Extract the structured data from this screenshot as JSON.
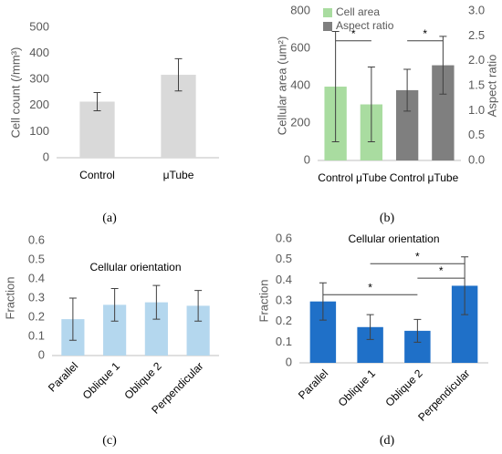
{
  "chart_data": [
    {
      "type": "bar",
      "panel_label": "(a)",
      "ylabel": "Cell count (/mm³)",
      "categories": [
        "Control",
        "μTube"
      ],
      "series": [
        {
          "name": null,
          "color": "#d9d9d9",
          "values": [
            215,
            318
          ],
          "errors": [
            35,
            62
          ]
        }
      ],
      "ylim": [
        0,
        500
      ],
      "yticks": [
        0,
        100,
        200,
        300,
        400,
        500
      ]
    },
    {
      "type": "bar",
      "panel_label": "(b)",
      "ylabel": "Cellular area (um²)",
      "y2label": "Aspect ratio",
      "categories": [
        "Control",
        "μTube",
        "Control",
        "μTube"
      ],
      "series": [
        {
          "name": "Cell area",
          "color": "#a9dca0",
          "values": [
            395,
            300,
            null,
            null
          ],
          "errors": [
            295,
            200,
            null,
            null
          ]
        },
        {
          "name": "Aspect ratio",
          "color": "#7f7f7f",
          "axis": "y2",
          "values": [
            null,
            null,
            1.41,
            1.91
          ],
          "errors": [
            null,
            null,
            0.42,
            0.58
          ]
        }
      ],
      "legend": "top-left",
      "ylim": [
        0,
        800
      ],
      "yticks": [
        0,
        200,
        400,
        600,
        800
      ],
      "y2lim": [
        0,
        3
      ],
      "y2ticks": [
        {
          "value": 0,
          "label": "0.0"
        },
        {
          "value": 0.5,
          "label": "0.5"
        },
        {
          "value": 1,
          "label": "1.0"
        },
        {
          "value": 1.5,
          "label": "1.5"
        },
        {
          "value": 2,
          "label": "2.0"
        },
        {
          "value": 2.5,
          "label": "2.5"
        },
        {
          "value": 3,
          "label": "3.0"
        }
      ],
      "annotations": [
        {
          "text": "*",
          "from": 0,
          "to": 1,
          "y": 640
        },
        {
          "text": "*",
          "from": 2,
          "to": 3,
          "y": 640
        }
      ]
    },
    {
      "type": "bar",
      "panel_label": "(c)",
      "title": "Cellular orientation",
      "ylabel": "Fraction",
      "categories": [
        "Parallel",
        "Oblique 1",
        "Oblique 2",
        "Perpendicular"
      ],
      "series": [
        {
          "name": null,
          "color": "#b4d7ee",
          "values": [
            0.19,
            0.265,
            0.278,
            0.26
          ],
          "errors": [
            0.11,
            0.085,
            0.088,
            0.08
          ]
        }
      ],
      "ylim": [
        0,
        0.6
      ],
      "yticks": [
        0,
        0.1,
        0.2,
        0.3,
        0.4,
        0.5,
        0.6
      ]
    },
    {
      "type": "bar",
      "panel_label": "(d)",
      "title": "Cellular orientation",
      "ylabel": "Fraction",
      "categories": [
        "Parallel",
        "Oblique 1",
        "Oblique 2",
        "Perpendicular"
      ],
      "series": [
        {
          "name": null,
          "color": "#1f70c8",
          "values": [
            0.297,
            0.173,
            0.155,
            0.373
          ],
          "errors": [
            0.09,
            0.06,
            0.055,
            0.14
          ]
        }
      ],
      "ylim": [
        0,
        0.6
      ],
      "yticks": [
        0,
        0.1,
        0.2,
        0.3,
        0.4,
        0.5,
        0.6
      ],
      "annotations": [
        {
          "text": "*",
          "from": 0,
          "to": 2,
          "y": 0.33
        },
        {
          "text": "*",
          "from": 1,
          "to": 3,
          "y": 0.48
        },
        {
          "text": "*",
          "from": 2,
          "to": 3,
          "y": 0.41
        }
      ]
    }
  ]
}
